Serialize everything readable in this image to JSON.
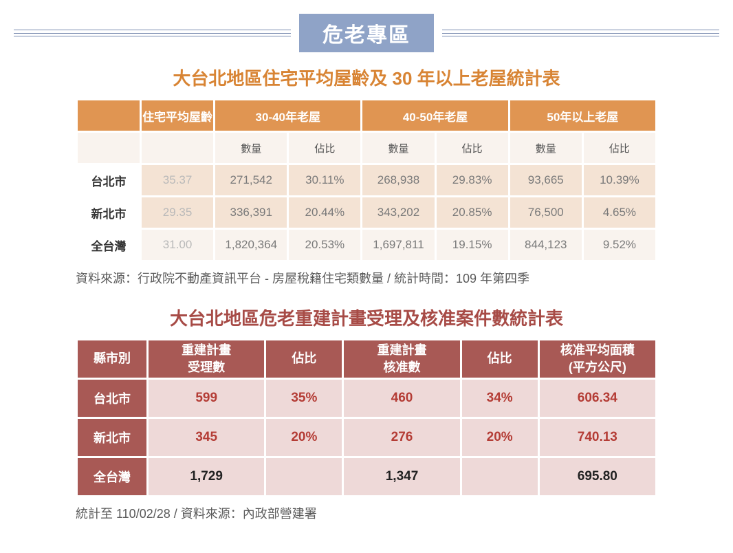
{
  "header": {
    "badge": "危老專區"
  },
  "table1": {
    "title": "大台北地區住宅平均屋齡及 30 年以上老屋統計表",
    "headers_top": [
      "住宅平均屋齡",
      "30-40年老屋",
      "40-50年老屋",
      "50年以上老屋"
    ],
    "sub": {
      "qty": "數量",
      "pct": "佔比"
    },
    "rows": [
      {
        "label": "台北市",
        "avg": "35.37",
        "a_qty": "271,542",
        "a_pct": "30.11%",
        "b_qty": "268,938",
        "b_pct": "29.83%",
        "c_qty": "93,665",
        "c_pct": "10.39%"
      },
      {
        "label": "新北市",
        "avg": "29.35",
        "a_qty": "336,391",
        "a_pct": "20.44%",
        "b_qty": "343,202",
        "b_pct": "20.85%",
        "c_qty": "76,500",
        "c_pct": "4.65%"
      },
      {
        "label": "全台灣",
        "avg": "31.00",
        "a_qty": "1,820,364",
        "a_pct": "20.53%",
        "b_qty": "1,697,811",
        "b_pct": "19.15%",
        "c_qty": "844,123",
        "c_pct": "9.52%"
      }
    ],
    "source": "資料來源：行政院不動產資訊平台 - 房屋稅籍住宅類數量  /  統計時間：109 年第四季"
  },
  "table2": {
    "title": "大台北地區危老重建計畫受理及核准案件數統計表",
    "headers": {
      "region": "縣市別",
      "h1a": "重建計畫",
      "h1b": "受理數",
      "pct": "佔比",
      "h2a": "重建計畫",
      "h2b": "核准數",
      "h3a": "核准平均面積",
      "h3b": "(平方公尺)"
    },
    "rows": [
      {
        "label": "台北市",
        "v1": "599",
        "p1": "35%",
        "v2": "460",
        "p2": "34%",
        "v3": "606.34",
        "red": true
      },
      {
        "label": "新北市",
        "v1": "345",
        "p1": "20%",
        "v2": "276",
        "p2": "20%",
        "v3": "740.13",
        "red": true
      },
      {
        "label": "全台灣",
        "v1": "1,729",
        "p1": "",
        "v2": "1,347",
        "p2": "",
        "v3": "695.80",
        "red": false
      }
    ],
    "source": "統計至 110/02/28  /  資料來源：內政部營建署"
  },
  "colors": {
    "badge_bg": "#8fa3c7",
    "title_orange": "#d88434",
    "title_brown": "#a74b46",
    "t1_header": "#e09552",
    "t1_cell": "#f4e3d4",
    "t1_cell_light": "#f9f3ee",
    "t2_header": "#a85955",
    "t2_cell": "#eed9d8",
    "red_text": "#b43c35"
  }
}
